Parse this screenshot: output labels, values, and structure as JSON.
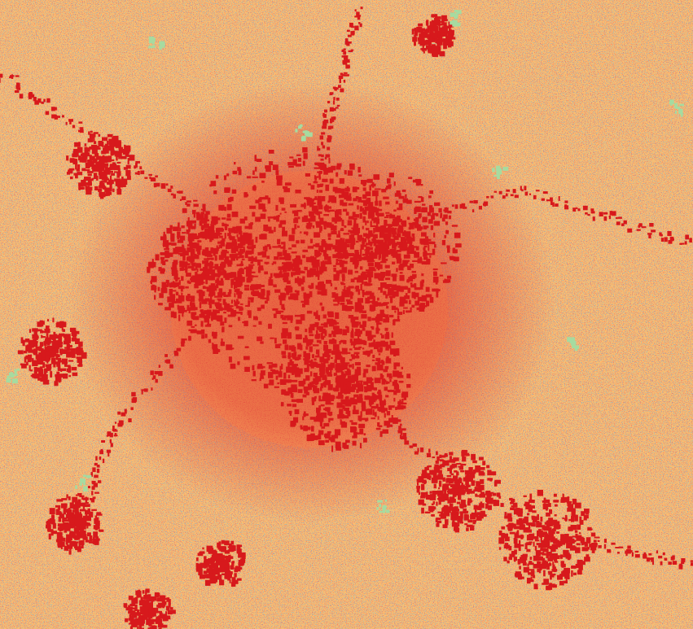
{
  "map": {
    "classes": [
      {
        "id": "built-up",
        "color": "#d7191c"
      },
      {
        "id": "vegetation",
        "color": "#2c7bb6"
      },
      {
        "id": "barren",
        "color": "#fdbf6f"
      },
      {
        "id": "water-or-grass",
        "color": "#a6dba0"
      }
    ],
    "background_color": "#fdbf6f"
  }
}
